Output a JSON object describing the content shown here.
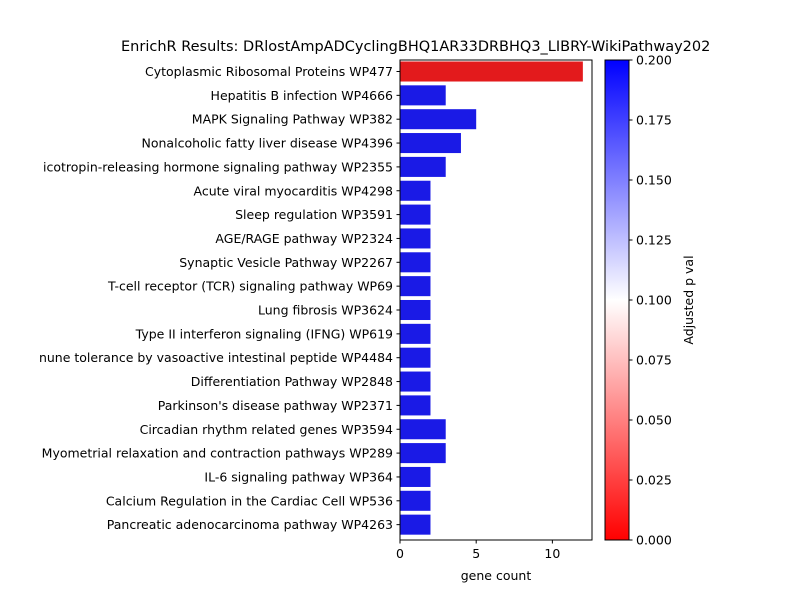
{
  "chart_data": {
    "type": "bar",
    "orientation": "horizontal",
    "title": "EnrichR Results: DRlostAmpADCyclingBHQ1AR33DRBHQ3_LIBRY-WikiPathway202",
    "xlabel": "gene count",
    "ylabel": "",
    "xlim": [
      0,
      12.6
    ],
    "xticks": [
      0,
      5,
      10
    ],
    "categories": [
      "Cytoplasmic Ribosomal Proteins WP477",
      "Hepatitis B infection WP4666",
      "MAPK Signaling Pathway WP382",
      "Nonalcoholic fatty liver disease WP4396",
      "icotropin-releasing hormone signaling pathway WP2355",
      "Acute viral myocarditis WP4298",
      "Sleep regulation WP3591",
      "AGE/RAGE pathway WP2324",
      "Synaptic Vesicle Pathway WP2267",
      "T-cell receptor (TCR) signaling pathway WP69",
      "Lung fibrosis WP3624",
      "Type II interferon signaling (IFNG) WP619",
      "nune tolerance by vasoactive intestinal peptide WP4484",
      "Differentiation Pathway WP2848",
      "Parkinson's disease pathway WP2371",
      "Circadian rhythm related genes WP3594",
      "Myometrial relaxation and contraction pathways WP289",
      "IL-6 signaling pathway WP364",
      "Calcium Regulation in the Cardiac Cell WP536",
      "Pancreatic adenocarcinoma pathway WP4263"
    ],
    "values": [
      12,
      3,
      5,
      4,
      3,
      2,
      2,
      2,
      2,
      2,
      2,
      2,
      2,
      2,
      2,
      3,
      3,
      2,
      2,
      2
    ],
    "bar_colors": [
      "#e31a1c",
      "#1a1ae6",
      "#1a1ae6",
      "#1a1ae6",
      "#1a1ae6",
      "#1a1ae6",
      "#1a1ae6",
      "#1a1ae6",
      "#1a1ae6",
      "#1a1ae6",
      "#1a1ae6",
      "#1a1ae6",
      "#1a1ae6",
      "#1a1ae6",
      "#1a1ae6",
      "#1a1ae6",
      "#1a1ae6",
      "#1a1ae6",
      "#1a1ae6",
      "#1a1ae6"
    ],
    "grid": false,
    "colorbar": {
      "label": "Adjusted p val",
      "range": [
        0,
        0.2
      ],
      "ticks": [
        "0.000",
        "0.025",
        "0.050",
        "0.075",
        "0.100",
        "0.125",
        "0.150",
        "0.175",
        "0.200"
      ],
      "colormap": [
        "#ff0000",
        "#ffffff",
        "#0000ff"
      ]
    }
  }
}
